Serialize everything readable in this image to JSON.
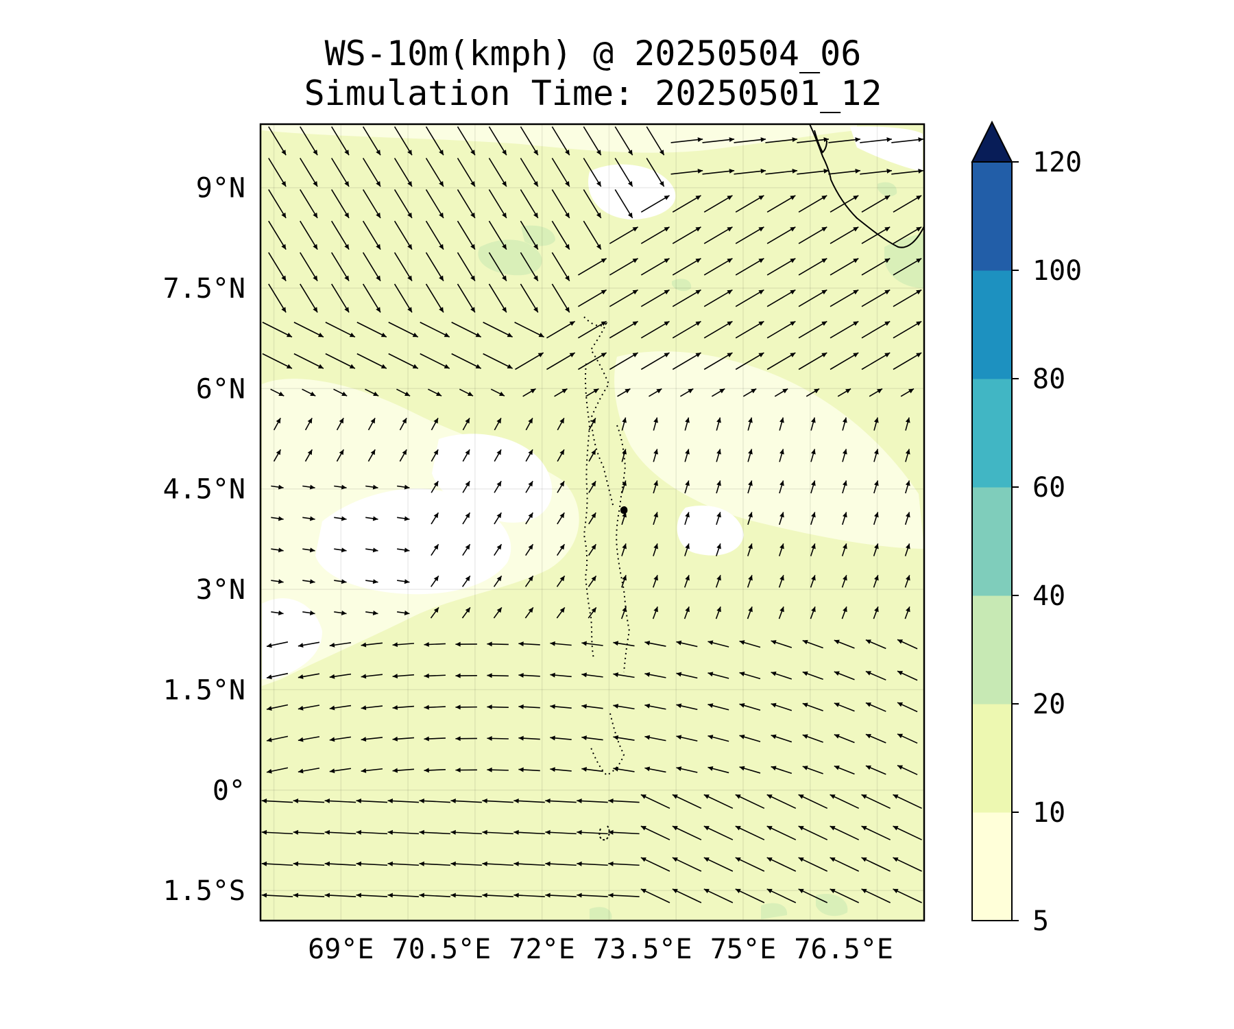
{
  "title": {
    "line1": "WS-10m(kmph) @ 20250504_06",
    "line2": "Simulation Time: 20250501_12"
  },
  "map": {
    "lon_range": [
      67.8,
      77.7
    ],
    "lat_range": [
      -1.95,
      9.95
    ],
    "lat_ticks": [
      {
        "value": 9,
        "label": "9°N"
      },
      {
        "value": 7.5,
        "label": "7.5°N"
      },
      {
        "value": 6,
        "label": "6°N"
      },
      {
        "value": 4.5,
        "label": "4.5°N"
      },
      {
        "value": 3,
        "label": "3°N"
      },
      {
        "value": 1.5,
        "label": "1.5°N"
      },
      {
        "value": 0,
        "label": "0°"
      },
      {
        "value": -1.5,
        "label": "1.5°S"
      }
    ],
    "lon_ticks": [
      {
        "value": 69,
        "label": "69°E"
      },
      {
        "value": 70.5,
        "label": "70.5°E"
      },
      {
        "value": 72,
        "label": "72°E"
      },
      {
        "value": 73.5,
        "label": "73.5°E"
      },
      {
        "value": 75,
        "label": "75°E"
      },
      {
        "value": 76.5,
        "label": "76.5°E"
      }
    ],
    "gridlines": true,
    "background_color": "#f0f8c0",
    "coastline_color": "#000000",
    "vector_color": "#000000"
  },
  "colorbar": {
    "levels": [
      5,
      10,
      20,
      40,
      60,
      80,
      100,
      120
    ],
    "colors": [
      "#ffffd9",
      "#edf8b1",
      "#c7e9b4",
      "#7fcdbb",
      "#41b6c4",
      "#1d91c0",
      "#225ea8",
      "#253494"
    ],
    "extend_color": "#081d58",
    "extend": "max",
    "labels": [
      "5",
      "10",
      "20",
      "40",
      "60",
      "80",
      "100",
      "120"
    ]
  }
}
